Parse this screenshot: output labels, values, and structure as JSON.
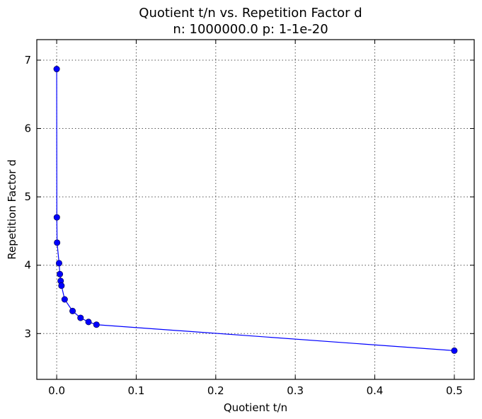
{
  "chart_data": {
    "type": "line",
    "title": "Quotient t/n vs. Repetition Factor d",
    "subtitle": "n: 1000000.0 p: 1-1e-20",
    "xlabel": "Quotient t/n",
    "ylabel": "Repetition Factor d",
    "xlim": [
      -0.025,
      0.525
    ],
    "ylim": [
      2.33,
      7.3
    ],
    "xticks": [
      0.0,
      0.1,
      0.2,
      0.3,
      0.4,
      0.5
    ],
    "xtick_labels": [
      "0.0",
      "0.1",
      "0.2",
      "0.3",
      "0.4",
      "0.5"
    ],
    "yticks": [
      3,
      4,
      5,
      6,
      7
    ],
    "ytick_labels": [
      "3",
      "4",
      "5",
      "6",
      "7"
    ],
    "grid": true,
    "line_color": "#0000ff",
    "marker": "circle",
    "series": [
      {
        "x": [
          0.0,
          0.0002,
          0.0005,
          0.003,
          0.004,
          0.005,
          0.006,
          0.01,
          0.02,
          0.03,
          0.04,
          0.05,
          0.5
        ],
        "values": [
          6.87,
          4.7,
          4.33,
          4.03,
          3.87,
          3.77,
          3.7,
          3.5,
          3.33,
          3.23,
          3.17,
          3.13,
          2.75
        ]
      }
    ]
  }
}
